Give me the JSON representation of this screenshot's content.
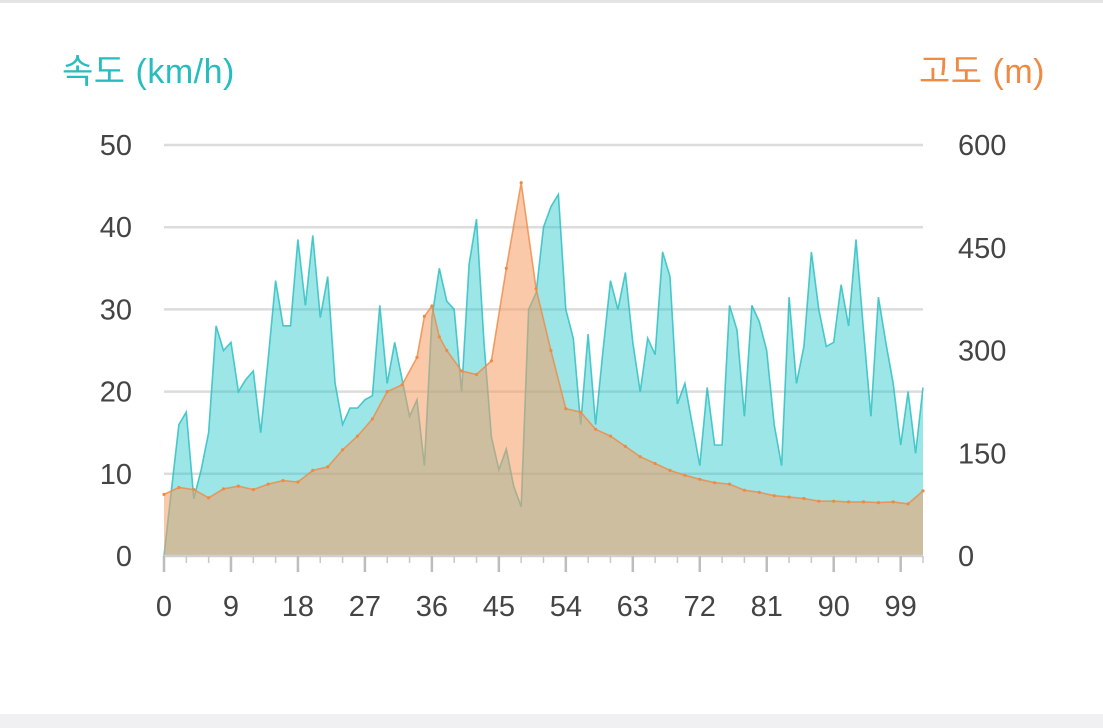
{
  "chart_data": {
    "type": "area",
    "title": "",
    "left_axis": {
      "label": "속도 (km/h)",
      "color": "#26bdbf",
      "ylim": [
        0,
        50
      ],
      "ticks": [
        0,
        10,
        20,
        30,
        40,
        50
      ]
    },
    "right_axis": {
      "label": "고도 (m)",
      "color": "#ef8a43",
      "ylim": [
        0,
        600
      ],
      "ticks": [
        0,
        150,
        300,
        450,
        600
      ]
    },
    "x_axis": {
      "xlim": [
        0,
        102
      ],
      "ticks": [
        0,
        9,
        18,
        27,
        36,
        45,
        54,
        63,
        72,
        81,
        90,
        99
      ]
    },
    "grid": true,
    "series": [
      {
        "key": "speed",
        "axis": "left",
        "color": "#26bdbf",
        "fill": "rgba(38,200,204,0.45)",
        "x": [
          0,
          1,
          2,
          3,
          4,
          5,
          6,
          7,
          8,
          9,
          10,
          11,
          12,
          13,
          14,
          15,
          16,
          17,
          18,
          19,
          20,
          21,
          22,
          23,
          24,
          25,
          26,
          27,
          28,
          29,
          30,
          31,
          32,
          33,
          34,
          35,
          36,
          37,
          38,
          39,
          40,
          41,
          42,
          43,
          44,
          45,
          46,
          47,
          48,
          49,
          50,
          51,
          52,
          53,
          54,
          55,
          56,
          57,
          58,
          59,
          60,
          61,
          62,
          63,
          64,
          65,
          66,
          67,
          68,
          69,
          70,
          71,
          72,
          73,
          74,
          75,
          76,
          77,
          78,
          79,
          80,
          81,
          82,
          83,
          84,
          85,
          86,
          87,
          88,
          89,
          90,
          91,
          92,
          93,
          94,
          95,
          96,
          97,
          98,
          99,
          100,
          101,
          102
        ],
        "values": [
          0,
          8,
          16,
          17.5,
          7,
          10.5,
          15,
          28,
          25,
          26,
          20,
          21.5,
          22.5,
          15,
          24,
          33.5,
          28,
          28,
          38.5,
          30.5,
          39,
          29,
          34,
          21,
          16,
          18,
          18,
          19,
          19.5,
          30.5,
          21,
          26,
          21.5,
          17,
          19,
          11,
          29,
          35,
          31,
          30,
          20,
          35.5,
          41,
          26,
          14.5,
          10.5,
          13,
          8.5,
          6,
          30,
          32,
          40,
          42.5,
          44,
          30,
          26.5,
          16,
          27,
          16,
          25,
          33.5,
          30,
          34.5,
          26,
          20,
          26.5,
          24.5,
          37,
          34,
          18.5,
          21,
          16,
          11,
          20.5,
          13.5,
          13.5,
          30.5,
          27.5,
          17,
          30.5,
          28.5,
          25,
          16,
          11,
          31.5,
          21,
          25.5,
          37,
          30,
          25.5,
          26,
          33,
          28,
          38.5,
          27.5,
          17,
          31.5,
          26,
          21,
          13.5,
          20,
          12.5,
          20.5
        ]
      },
      {
        "key": "altitude",
        "axis": "right",
        "color": "#ef8a43",
        "fill": "rgba(246,156,100,0.55)",
        "x": [
          0,
          2,
          4,
          6,
          8,
          10,
          12,
          14,
          16,
          18,
          20,
          22,
          24,
          26,
          28,
          30,
          32,
          34,
          35,
          36,
          37,
          38,
          40,
          42,
          44,
          46,
          48,
          50,
          52,
          54,
          56,
          58,
          60,
          62,
          64,
          66,
          68,
          70,
          72,
          74,
          76,
          78,
          80,
          82,
          84,
          86,
          88,
          90,
          92,
          94,
          96,
          98,
          100,
          102
        ],
        "values": [
          90,
          100,
          97,
          85,
          98,
          102,
          97,
          105,
          110,
          108,
          125,
          130,
          155,
          175,
          200,
          240,
          250,
          290,
          350,
          365,
          320,
          300,
          270,
          265,
          285,
          420,
          545,
          390,
          300,
          215,
          210,
          185,
          175,
          160,
          145,
          135,
          125,
          118,
          112,
          107,
          105,
          96,
          93,
          88,
          86,
          84,
          80,
          80,
          79,
          79,
          78,
          79,
          76,
          95
        ]
      }
    ]
  }
}
